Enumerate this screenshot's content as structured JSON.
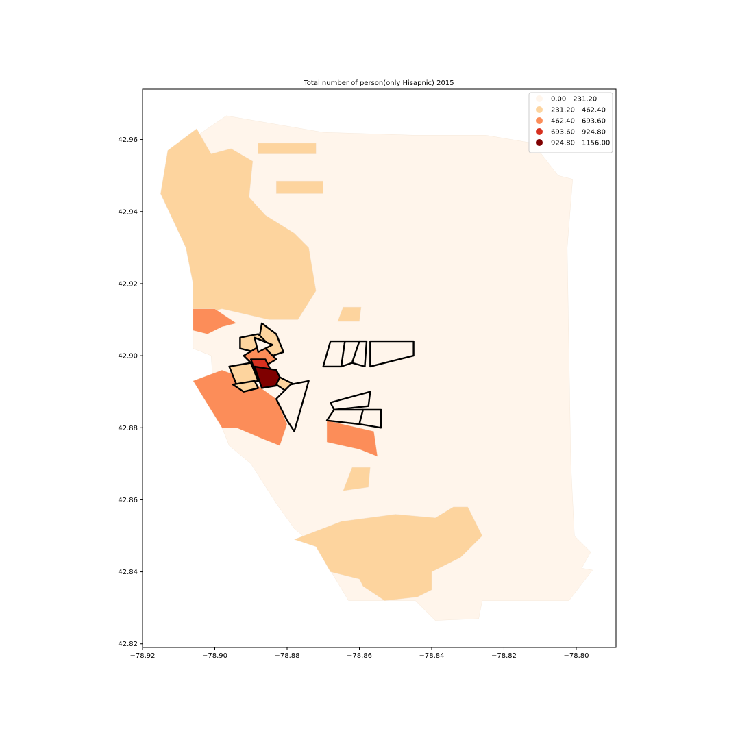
{
  "chart_data": {
    "type": "choropleth-map",
    "title": "Total number of person(only Hisapnic) 2015",
    "xlim": [
      -78.92,
      -78.789
    ],
    "ylim": [
      42.819,
      42.974
    ],
    "x_ticks": [
      -78.92,
      -78.9,
      -78.88,
      -78.86,
      -78.84,
      -78.82,
      -78.8
    ],
    "x_tick_labels": [
      "−78.92",
      "−78.90",
      "−78.88",
      "−78.86",
      "−78.84",
      "−78.82",
      "−78.80"
    ],
    "y_ticks": [
      42.82,
      42.84,
      42.86,
      42.88,
      42.9,
      42.92,
      42.94,
      42.96
    ],
    "y_tick_labels": [
      "42.82",
      "42.84",
      "42.86",
      "42.88",
      "42.90",
      "42.92",
      "42.94",
      "42.96"
    ],
    "legend_position": "top-right",
    "classes": [
      {
        "label": "0.00 - 231.20",
        "min": 0.0,
        "max": 231.2,
        "color": "#fff5eb"
      },
      {
        "label": "231.20 - 462.40",
        "min": 231.2,
        "max": 462.4,
        "color": "#fdd49e"
      },
      {
        "label": "462.40 - 693.60",
        "min": 462.4,
        "max": 693.6,
        "color": "#fc8d59"
      },
      {
        "label": "693.60 - 924.80",
        "min": 693.6,
        "max": 924.8,
        "color": "#d7301f"
      },
      {
        "label": "924.80 - 1156.00",
        "min": 924.8,
        "max": 1156.0,
        "color": "#7f0000"
      }
    ],
    "regions": [
      {
        "class": 0,
        "outline": false,
        "coords": [
          [
            -78.8968,
            42.9666
          ],
          [
            -78.87,
            42.962
          ],
          [
            -78.845,
            42.9612
          ],
          [
            -78.825,
            42.9612
          ],
          [
            -78.812,
            42.959
          ],
          [
            -78.805,
            42.95
          ],
          [
            -78.801,
            42.949
          ],
          [
            -78.8025,
            42.93
          ],
          [
            -78.802,
            42.9
          ],
          [
            -78.8015,
            42.87
          ],
          [
            -78.8005,
            42.85
          ],
          [
            -78.796,
            42.8455
          ],
          [
            -78.7985,
            42.841
          ],
          [
            -78.7955,
            42.8405
          ],
          [
            -78.802,
            42.832
          ],
          [
            -78.826,
            42.832
          ],
          [
            -78.827,
            42.827
          ],
          [
            -78.839,
            42.8265
          ],
          [
            -78.8445,
            42.832
          ],
          [
            -78.863,
            42.832
          ],
          [
            -78.872,
            42.847
          ],
          [
            -78.878,
            42.852
          ],
          [
            -78.883,
            42.859
          ],
          [
            -78.89,
            42.87
          ],
          [
            -78.896,
            42.875
          ],
          [
            -78.9,
            42.885
          ],
          [
            -78.901,
            42.9
          ],
          [
            -78.906,
            42.902
          ],
          [
            -78.906,
            42.92
          ],
          [
            -78.908,
            42.93
          ],
          [
            -78.915,
            42.945
          ],
          [
            -78.9115,
            42.957
          ],
          [
            -78.905,
            42.961
          ]
        ]
      },
      {
        "class": 1,
        "outline": false,
        "coords": [
          [
            -78.913,
            42.957
          ],
          [
            -78.905,
            42.963
          ],
          [
            -78.901,
            42.956
          ],
          [
            -78.8955,
            42.9575
          ],
          [
            -78.8895,
            42.954
          ],
          [
            -78.8905,
            42.944
          ],
          [
            -78.886,
            42.939
          ],
          [
            -78.878,
            42.934
          ],
          [
            -78.874,
            42.93
          ],
          [
            -78.872,
            42.918
          ],
          [
            -78.877,
            42.91
          ],
          [
            -78.885,
            42.91
          ],
          [
            -78.898,
            42.913
          ],
          [
            -78.906,
            42.911
          ],
          [
            -78.906,
            42.92
          ],
          [
            -78.908,
            42.93
          ],
          [
            -78.915,
            42.945
          ]
        ]
      },
      {
        "class": 1,
        "outline": false,
        "coords": [
          [
            -78.888,
            42.959
          ],
          [
            -78.872,
            42.959
          ],
          [
            -78.872,
            42.956
          ],
          [
            -78.888,
            42.956
          ]
        ]
      },
      {
        "class": 1,
        "outline": false,
        "coords": [
          [
            -78.883,
            42.9485
          ],
          [
            -78.87,
            42.9485
          ],
          [
            -78.87,
            42.945
          ],
          [
            -78.883,
            42.945
          ]
        ]
      },
      {
        "class": 1,
        "outline": false,
        "coords": [
          [
            -78.8645,
            42.9135
          ],
          [
            -78.8595,
            42.9135
          ],
          [
            -78.86,
            42.9095
          ],
          [
            -78.866,
            42.9095
          ]
        ]
      },
      {
        "class": 1,
        "outline": false,
        "coords": [
          [
            -78.862,
            42.869
          ],
          [
            -78.857,
            42.869
          ],
          [
            -78.8575,
            42.8635
          ],
          [
            -78.8645,
            42.8625
          ]
        ]
      },
      {
        "class": 1,
        "outline": false,
        "coords": [
          [
            -78.878,
            42.849
          ],
          [
            -78.865,
            42.854
          ],
          [
            -78.85,
            42.856
          ],
          [
            -78.839,
            42.855
          ],
          [
            -78.834,
            42.858
          ],
          [
            -78.83,
            42.858
          ],
          [
            -78.826,
            42.85
          ],
          [
            -78.829,
            42.847
          ],
          [
            -78.832,
            42.844
          ],
          [
            -78.84,
            42.84
          ],
          [
            -78.84,
            42.835
          ],
          [
            -78.844,
            42.833
          ],
          [
            -78.853,
            42.832
          ],
          [
            -78.859,
            42.836
          ],
          [
            -78.86,
            42.838
          ],
          [
            -78.868,
            42.84
          ],
          [
            -78.872,
            42.847
          ]
        ]
      },
      {
        "class": 2,
        "outline": false,
        "coords": [
          [
            -78.906,
            42.913
          ],
          [
            -78.9,
            42.913
          ],
          [
            -78.894,
            42.909
          ],
          [
            -78.898,
            42.908
          ],
          [
            -78.902,
            42.906
          ],
          [
            -78.906,
            42.907
          ]
        ]
      },
      {
        "class": 2,
        "outline": false,
        "coords": [
          [
            -78.906,
            42.893
          ],
          [
            -78.898,
            42.896
          ],
          [
            -78.89,
            42.893
          ],
          [
            -78.883,
            42.888
          ],
          [
            -78.88,
            42.881
          ],
          [
            -78.882,
            42.875
          ],
          [
            -78.887,
            42.877
          ],
          [
            -78.894,
            42.88
          ],
          [
            -78.898,
            42.88
          ]
        ]
      },
      {
        "class": 2,
        "outline": false,
        "coords": [
          [
            -78.869,
            42.882
          ],
          [
            -78.856,
            42.879
          ],
          [
            -78.855,
            42.872
          ],
          [
            -78.86,
            42.874
          ],
          [
            -78.869,
            42.876
          ]
        ]
      },
      {
        "class": 0,
        "outline": true,
        "coords": [
          [
            -78.868,
            42.904
          ],
          [
            -78.864,
            42.904
          ],
          [
            -78.865,
            42.897
          ],
          [
            -78.87,
            42.897
          ]
        ]
      },
      {
        "class": 0,
        "outline": true,
        "coords": [
          [
            -78.864,
            42.904
          ],
          [
            -78.86,
            42.904
          ],
          [
            -78.862,
            42.898
          ],
          [
            -78.865,
            42.897
          ]
        ]
      },
      {
        "class": 0,
        "outline": true,
        "coords": [
          [
            -78.86,
            42.904
          ],
          [
            -78.858,
            42.904
          ],
          [
            -78.8585,
            42.897
          ],
          [
            -78.862,
            42.898
          ]
        ]
      },
      {
        "class": 0,
        "outline": true,
        "coords": [
          [
            -78.857,
            42.904
          ],
          [
            -78.845,
            42.904
          ],
          [
            -78.845,
            42.9
          ],
          [
            -78.857,
            42.897
          ]
        ]
      },
      {
        "class": 0,
        "outline": true,
        "coords": [
          [
            -78.868,
            42.887
          ],
          [
            -78.857,
            42.89
          ],
          [
            -78.8575,
            42.886
          ],
          [
            -78.867,
            42.885
          ]
        ]
      },
      {
        "class": 0,
        "outline": true,
        "coords": [
          [
            -78.867,
            42.885
          ],
          [
            -78.859,
            42.885
          ],
          [
            -78.86,
            42.881
          ],
          [
            -78.869,
            42.882
          ]
        ]
      },
      {
        "class": 0,
        "outline": true,
        "coords": [
          [
            -78.859,
            42.885
          ],
          [
            -78.854,
            42.885
          ],
          [
            -78.854,
            42.88
          ],
          [
            -78.86,
            42.881
          ]
        ]
      },
      {
        "class": 1,
        "outline": true,
        "coords": [
          [
            -78.887,
            42.909
          ],
          [
            -78.883,
            42.906
          ],
          [
            -78.881,
            42.901
          ],
          [
            -78.884,
            42.9
          ],
          [
            -78.888,
            42.903
          ]
        ]
      },
      {
        "class": 1,
        "outline": true,
        "coords": [
          [
            -78.893,
            42.905
          ],
          [
            -78.888,
            42.906
          ],
          [
            -78.885,
            42.903
          ],
          [
            -78.889,
            42.901
          ],
          [
            -78.893,
            42.902
          ]
        ]
      },
      {
        "class": 2,
        "outline": true,
        "coords": [
          [
            -78.892,
            42.9
          ],
          [
            -78.887,
            42.903
          ],
          [
            -78.883,
            42.899
          ],
          [
            -78.888,
            42.896
          ]
        ]
      },
      {
        "class": 1,
        "outline": true,
        "coords": [
          [
            -78.896,
            42.897
          ],
          [
            -78.89,
            42.898
          ],
          [
            -78.888,
            42.893
          ],
          [
            -78.894,
            42.892
          ]
        ]
      },
      {
        "class": 3,
        "outline": true,
        "coords": [
          [
            -78.89,
            42.899
          ],
          [
            -78.886,
            42.899
          ],
          [
            -78.884,
            42.895
          ],
          [
            -78.888,
            42.893
          ]
        ]
      },
      {
        "class": 4,
        "outline": true,
        "coords": [
          [
            -78.889,
            42.897
          ],
          [
            -78.883,
            42.896
          ],
          [
            -78.881,
            42.892
          ],
          [
            -78.887,
            42.891
          ]
        ]
      },
      {
        "class": 1,
        "outline": true,
        "coords": [
          [
            -78.895,
            42.892
          ],
          [
            -78.889,
            42.893
          ],
          [
            -78.888,
            42.891
          ],
          [
            -78.892,
            42.89
          ]
        ]
      },
      {
        "class": 1,
        "outline": true,
        "coords": [
          [
            -78.882,
            42.894
          ],
          [
            -78.878,
            42.892
          ],
          [
            -78.88,
            42.89
          ],
          [
            -78.883,
            42.892
          ]
        ]
      },
      {
        "class": 0,
        "outline": true,
        "coords": [
          [
            -78.879,
            42.892
          ],
          [
            -78.874,
            42.893
          ],
          [
            -78.878,
            42.879
          ],
          [
            -78.88,
            42.882
          ],
          [
            -78.883,
            42.888
          ]
        ]
      },
      {
        "class": 0,
        "outline": true,
        "coords": [
          [
            -78.889,
            42.905
          ],
          [
            -78.884,
            42.903
          ],
          [
            -78.888,
            42.901
          ]
        ]
      }
    ]
  }
}
